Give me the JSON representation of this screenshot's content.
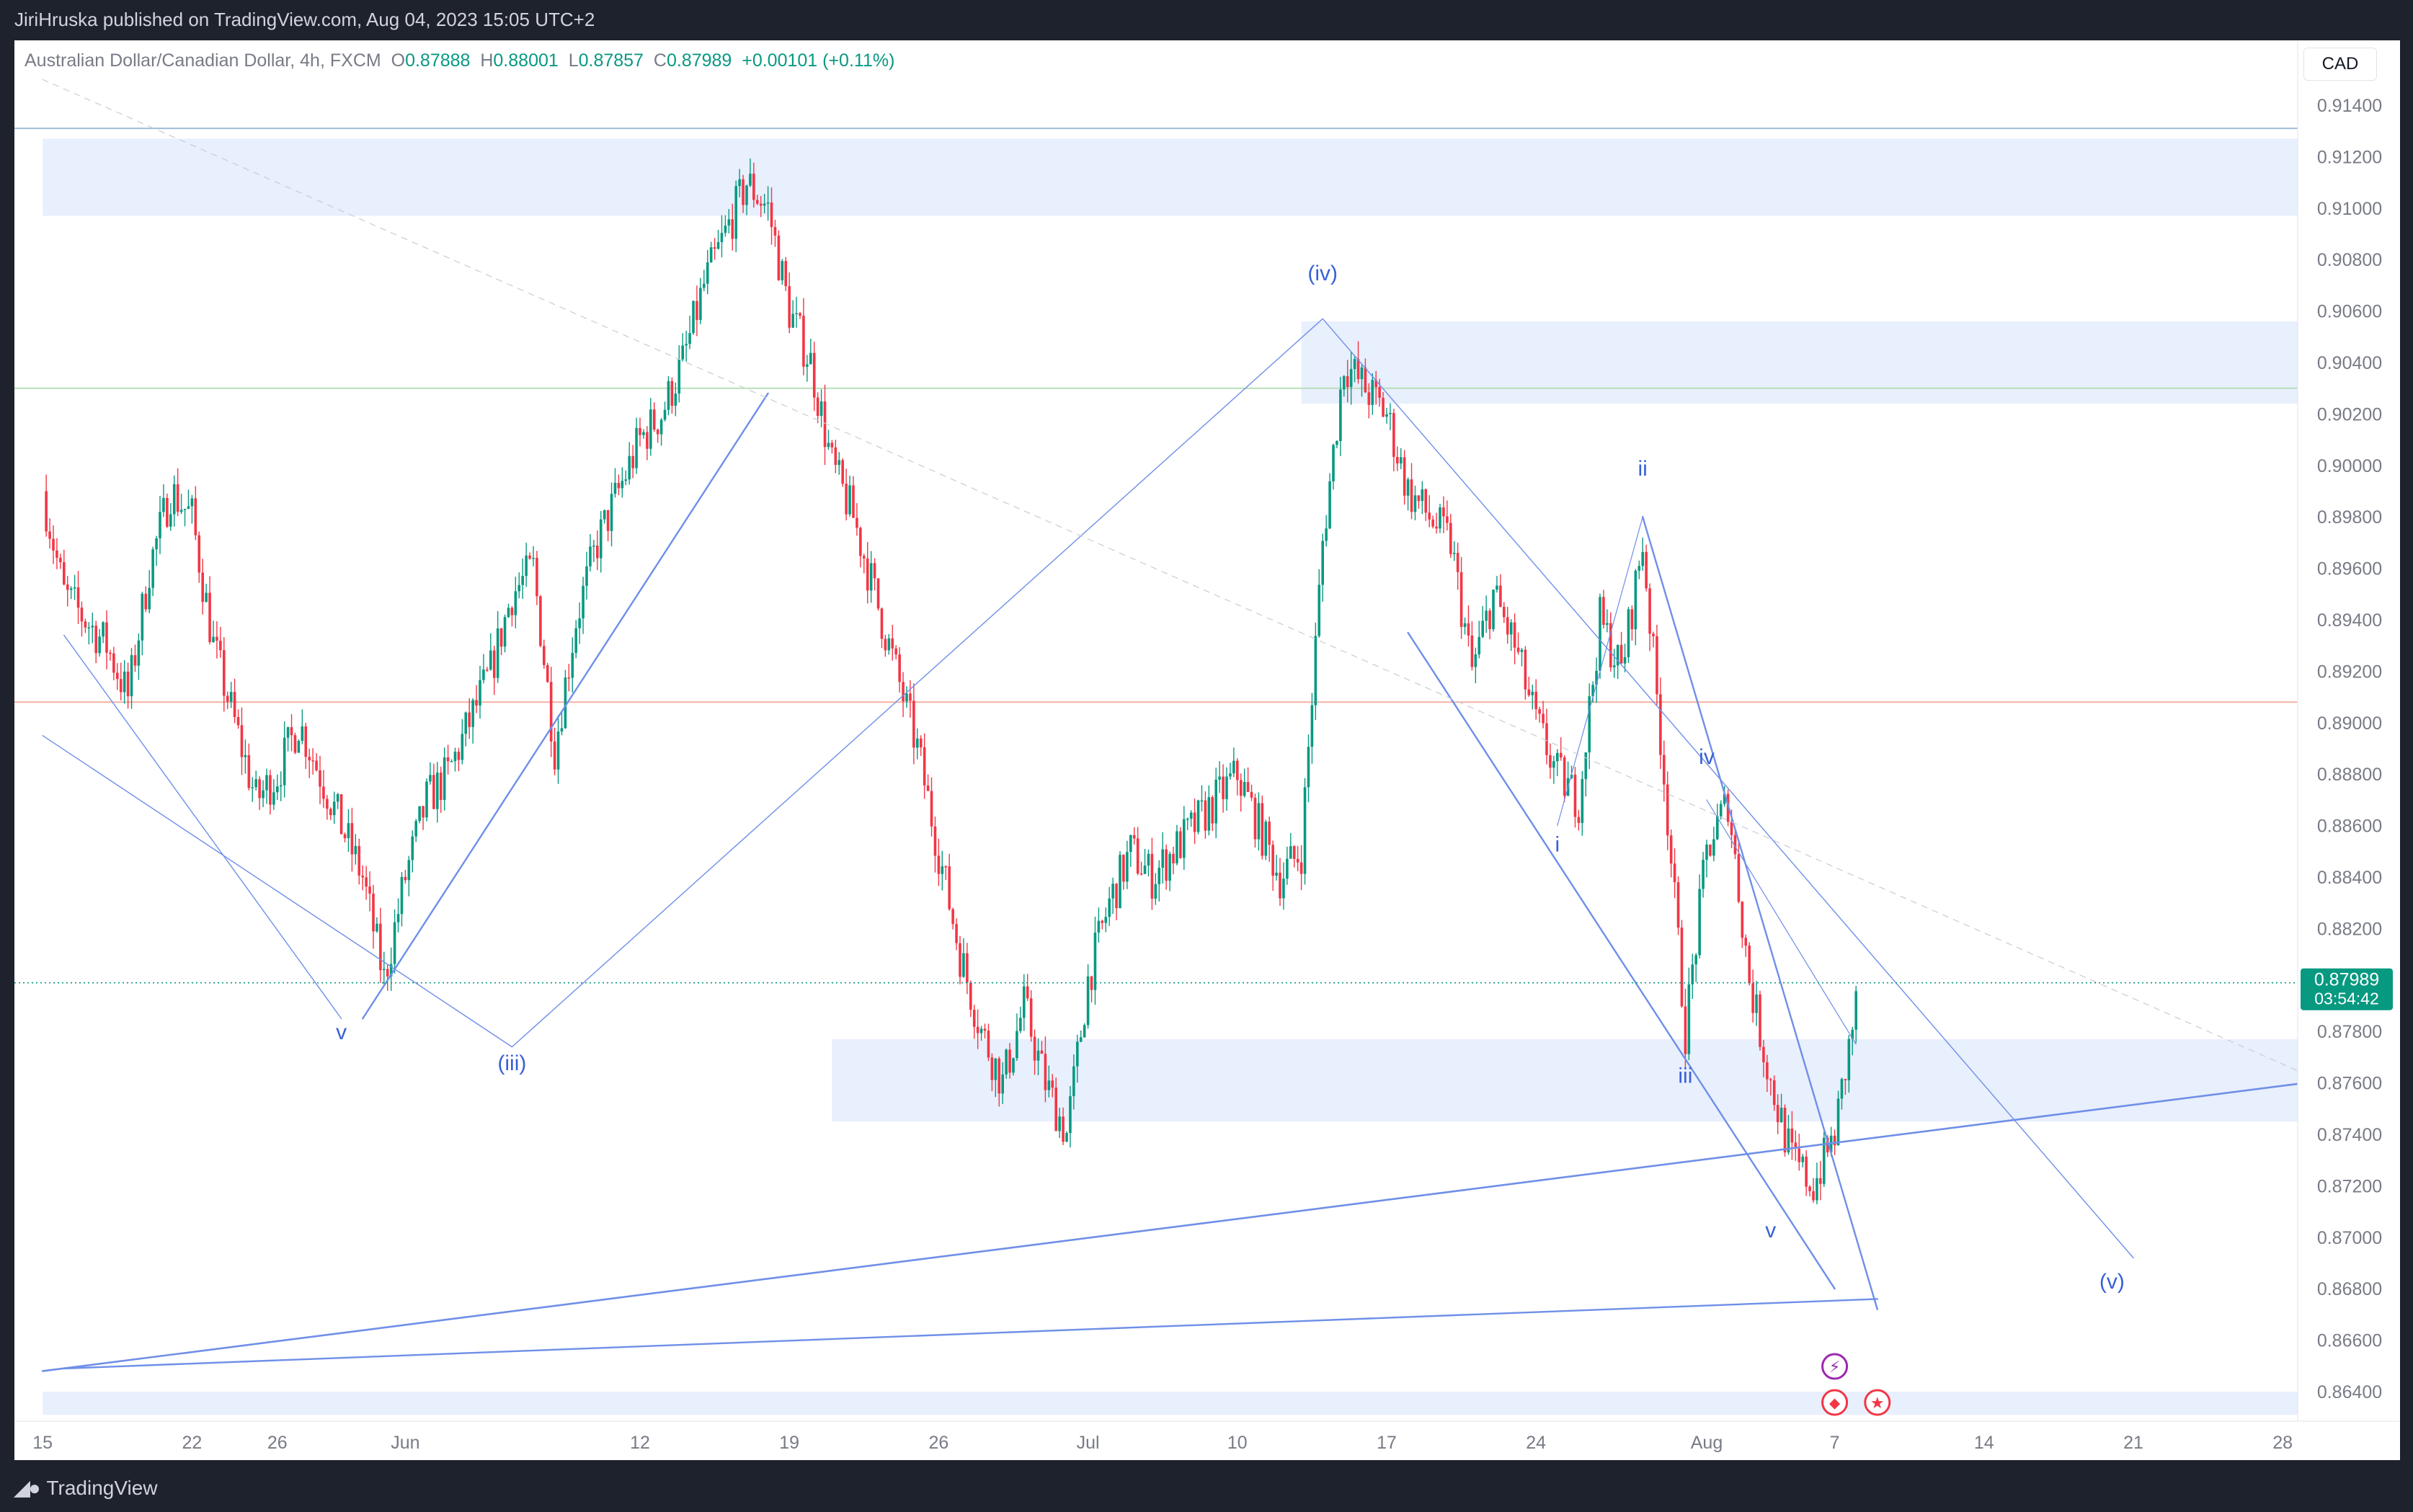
{
  "header": {
    "published_by": "JiriHruska published on TradingView.com, Aug 04, 2023 15:05 UTC+2"
  },
  "footer": {
    "brand": "TradingView"
  },
  "symbol": {
    "name": "Australian Dollar/Canadian Dollar",
    "interval": "4h",
    "exchange": "FXCM",
    "open_label": "O",
    "open": "0.87888",
    "high_label": "H",
    "high": "0.88001",
    "low_label": "L",
    "low": "0.87857",
    "close_label": "C",
    "close": "0.87989",
    "change": "+0.00101 (+0.11%)"
  },
  "currency_button": "CAD",
  "last_price": {
    "value": "0.87989",
    "countdown": "03:54:42"
  },
  "colors": {
    "up": "#089981",
    "down": "#f23645",
    "wave": "#6f8fe8",
    "zone": "#e8effd",
    "label": "#3861d6",
    "price_badge": "#089981"
  },
  "chart_data": {
    "type": "candlestick",
    "y_axis": {
      "range": [
        0.8628,
        0.9157
      ],
      "ticks": [
        "0.91400",
        "0.91200",
        "0.91000",
        "0.90800",
        "0.90600",
        "0.90400",
        "0.90200",
        "0.90000",
        "0.89800",
        "0.89600",
        "0.89400",
        "0.89200",
        "0.89000",
        "0.88800",
        "0.88600",
        "0.88400",
        "0.88200",
        "0.88000",
        "0.87800",
        "0.87600",
        "0.87400",
        "0.87200",
        "0.87000",
        "0.86800",
        "0.86600",
        "0.86400"
      ]
    },
    "x_axis": {
      "ticks": [
        {
          "label": "15",
          "date": "2023-05-15"
        },
        {
          "label": "22",
          "date": "2023-05-22"
        },
        {
          "label": "26",
          "date": "2023-05-26"
        },
        {
          "label": "Jun",
          "date": "2023-06-01"
        },
        {
          "label": "12",
          "date": "2023-06-12"
        },
        {
          "label": "19",
          "date": "2023-06-19"
        },
        {
          "label": "26",
          "date": "2023-06-26"
        },
        {
          "label": "Jul",
          "date": "2023-07-03"
        },
        {
          "label": "10",
          "date": "2023-07-10"
        },
        {
          "label": "17",
          "date": "2023-07-17"
        },
        {
          "label": "24",
          "date": "2023-07-24"
        },
        {
          "label": "Aug",
          "date": "2023-08-01"
        },
        {
          "label": "7",
          "date": "2023-08-07"
        },
        {
          "label": "14",
          "date": "2023-08-14"
        },
        {
          "label": "21",
          "date": "2023-08-21"
        },
        {
          "label": "28",
          "date": "2023-08-28"
        }
      ]
    },
    "price_path": [
      [
        "2023-05-15",
        0.899
      ],
      [
        "2023-05-16",
        0.895
      ],
      [
        "2023-05-17",
        0.894
      ],
      [
        "2023-05-18",
        0.893
      ],
      [
        "2023-05-19",
        0.891
      ],
      [
        "2023-05-20",
        0.896
      ],
      [
        "2023-05-21",
        0.899
      ],
      [
        "2023-05-22",
        0.898
      ],
      [
        "2023-05-23",
        0.893
      ],
      [
        "2023-05-24",
        0.89
      ],
      [
        "2023-05-25",
        0.887
      ],
      [
        "2023-05-26",
        0.888
      ],
      [
        "2023-05-27",
        0.89
      ],
      [
        "2023-05-28",
        0.888
      ],
      [
        "2023-05-29",
        0.886
      ],
      [
        "2023-05-30",
        0.884
      ],
      [
        "2023-05-31",
        0.88
      ],
      [
        "2023-06-01",
        0.884
      ],
      [
        "2023-06-02",
        0.887
      ],
      [
        "2023-06-03",
        0.888
      ],
      [
        "2023-06-04",
        0.89
      ],
      [
        "2023-06-05",
        0.892
      ],
      [
        "2023-06-06",
        0.895
      ],
      [
        "2023-06-07",
        0.896
      ],
      [
        "2023-06-08",
        0.889
      ],
      [
        "2023-06-09",
        0.894
      ],
      [
        "2023-06-10",
        0.897
      ],
      [
        "2023-06-11",
        0.899
      ],
      [
        "2023-06-12",
        0.901
      ],
      [
        "2023-06-13",
        0.902
      ],
      [
        "2023-06-14",
        0.904
      ],
      [
        "2023-06-15",
        0.907
      ],
      [
        "2023-06-16",
        0.909
      ],
      [
        "2023-06-17",
        0.911
      ],
      [
        "2023-06-18",
        0.91
      ],
      [
        "2023-06-19",
        0.906
      ],
      [
        "2023-06-20",
        0.904
      ],
      [
        "2023-06-21",
        0.9
      ],
      [
        "2023-06-22",
        0.898
      ],
      [
        "2023-06-23",
        0.895
      ],
      [
        "2023-06-24",
        0.892
      ],
      [
        "2023-06-25",
        0.889
      ],
      [
        "2023-06-26",
        0.885
      ],
      [
        "2023-06-27",
        0.881
      ],
      [
        "2023-06-28",
        0.878
      ],
      [
        "2023-06-29",
        0.876
      ],
      [
        "2023-06-30",
        0.879
      ],
      [
        "2023-07-01",
        0.876
      ],
      [
        "2023-07-02",
        0.874
      ],
      [
        "2023-07-03",
        0.88
      ],
      [
        "2023-07-04",
        0.883
      ],
      [
        "2023-07-05",
        0.885
      ],
      [
        "2023-07-06",
        0.884
      ],
      [
        "2023-07-07",
        0.885
      ],
      [
        "2023-07-08",
        0.886
      ],
      [
        "2023-07-09",
        0.887
      ],
      [
        "2023-07-10",
        0.888
      ],
      [
        "2023-07-11",
        0.886
      ],
      [
        "2023-07-12",
        0.884
      ],
      [
        "2023-07-13",
        0.885
      ],
      [
        "2023-07-14",
        0.897
      ],
      [
        "2023-07-15",
        0.904
      ],
      [
        "2023-07-16",
        0.903
      ],
      [
        "2023-07-17",
        0.902
      ],
      [
        "2023-07-18",
        0.899
      ],
      [
        "2023-07-19",
        0.898
      ],
      [
        "2023-07-20",
        0.897
      ],
      [
        "2023-07-21",
        0.892
      ],
      [
        "2023-07-22",
        0.895
      ],
      [
        "2023-07-23",
        0.893
      ],
      [
        "2023-07-24",
        0.89
      ],
      [
        "2023-07-25",
        0.888
      ],
      [
        "2023-07-26",
        0.887
      ],
      [
        "2023-07-27",
        0.894
      ],
      [
        "2023-07-28",
        0.892
      ],
      [
        "2023-07-29",
        0.897
      ],
      [
        "2023-07-30",
        0.888
      ],
      [
        "2023-07-31",
        0.878
      ],
      [
        "2023-08-01",
        0.885
      ],
      [
        "2023-08-02",
        0.887
      ],
      [
        "2023-08-03",
        0.88
      ],
      [
        "2023-08-04",
        0.876
      ],
      [
        "2023-08-05",
        0.873
      ],
      [
        "2023-08-06",
        0.872
      ],
      [
        "2023-08-07",
        0.874
      ],
      [
        "2023-08-08",
        0.879
      ]
    ],
    "horizontal_lines": [
      {
        "price": 0.9131,
        "color": "#9fbcd6"
      },
      {
        "price": 0.903,
        "color": "#b7dfb7"
      },
      {
        "price": 0.8908,
        "color": "#f2b1a6"
      }
    ],
    "zones": [
      {
        "from": "2023-05-15",
        "to": "2023-08-30",
        "low": 0.9097,
        "high": 0.9127
      },
      {
        "from": "2023-07-13",
        "to": "2023-08-30",
        "low": 0.9024,
        "high": 0.9056
      },
      {
        "from": "2023-06-21",
        "to": "2023-08-30",
        "low": 0.8745,
        "high": 0.8777
      },
      {
        "from": "2023-05-15",
        "to": "2023-08-30",
        "low": 0.8631,
        "high": 0.864
      }
    ],
    "wave_labels": [
      {
        "text": "v",
        "date": "2023-05-29",
        "price": 0.8777
      },
      {
        "text": "(iii)",
        "date": "2023-06-06",
        "price": 0.8765
      },
      {
        "text": "(iv)",
        "date": "2023-07-14",
        "price": 0.9072
      },
      {
        "text": "ii",
        "date": "2023-07-29",
        "price": 0.8996
      },
      {
        "text": "i",
        "date": "2023-07-25",
        "price": 0.885
      },
      {
        "text": "iv",
        "date": "2023-08-01",
        "price": 0.8884
      },
      {
        "text": "iii",
        "date": "2023-07-31",
        "price": 0.876
      },
      {
        "text": "v",
        "date": "2023-08-04",
        "price": 0.87
      },
      {
        "text": "(v)",
        "date": "2023-08-20",
        "price": 0.868
      }
    ],
    "trend_lines": [
      {
        "from": [
          "2023-05-15",
          0.8648
        ],
        "to": [
          "2023-08-30",
          0.8761
        ],
        "width": 2.6
      },
      {
        "from": [
          "2023-05-16",
          0.8649
        ],
        "to": [
          "2023-08-09",
          0.8676
        ],
        "width": 2.4
      },
      {
        "from": [
          "2023-05-15",
          0.8895
        ],
        "to": [
          "2023-06-06",
          0.8774
        ],
        "width": 1.4
      },
      {
        "from": [
          "2023-05-16",
          0.8934
        ],
        "to": [
          "2023-05-29",
          0.8785
        ],
        "width": 1.4
      },
      {
        "from": [
          "2023-05-30",
          0.8785
        ],
        "to": [
          "2023-06-18",
          0.9028
        ],
        "width": 2.4
      },
      {
        "from": [
          "2023-06-06",
          0.8774
        ],
        "to": [
          "2023-07-14",
          0.9057
        ],
        "width": 1.4
      },
      {
        "from": [
          "2023-07-14",
          0.9057
        ],
        "to": [
          "2023-08-21",
          0.8692
        ],
        "width": 1.4
      },
      {
        "from": [
          "2023-07-18",
          0.8935
        ],
        "to": [
          "2023-08-07",
          0.868
        ],
        "width": 2.4
      },
      {
        "from": [
          "2023-07-25",
          0.886
        ],
        "to": [
          "2023-07-29",
          0.898
        ],
        "width": 1.2
      },
      {
        "from": [
          "2023-07-29",
          0.898
        ],
        "to": [
          "2023-08-09",
          0.8672
        ],
        "width": 2.4
      },
      {
        "from": [
          "2023-08-01",
          0.887
        ],
        "to": [
          "2023-08-08",
          0.8775
        ],
        "width": 1.2
      },
      {
        "from": [
          "2023-05-15",
          0.915
        ],
        "to": [
          "2023-08-30",
          0.876
        ],
        "width": 1.2,
        "dashed": true
      }
    ],
    "events": [
      {
        "date": "2023-08-07",
        "icon": "lightning-icon",
        "color": "#9c27b0"
      },
      {
        "date": "2023-08-07",
        "icon": "canada-flag-icon",
        "color": "#f23645"
      },
      {
        "date": "2023-08-09",
        "icon": "australia-flag-icon",
        "color": "#f23645"
      }
    ]
  }
}
